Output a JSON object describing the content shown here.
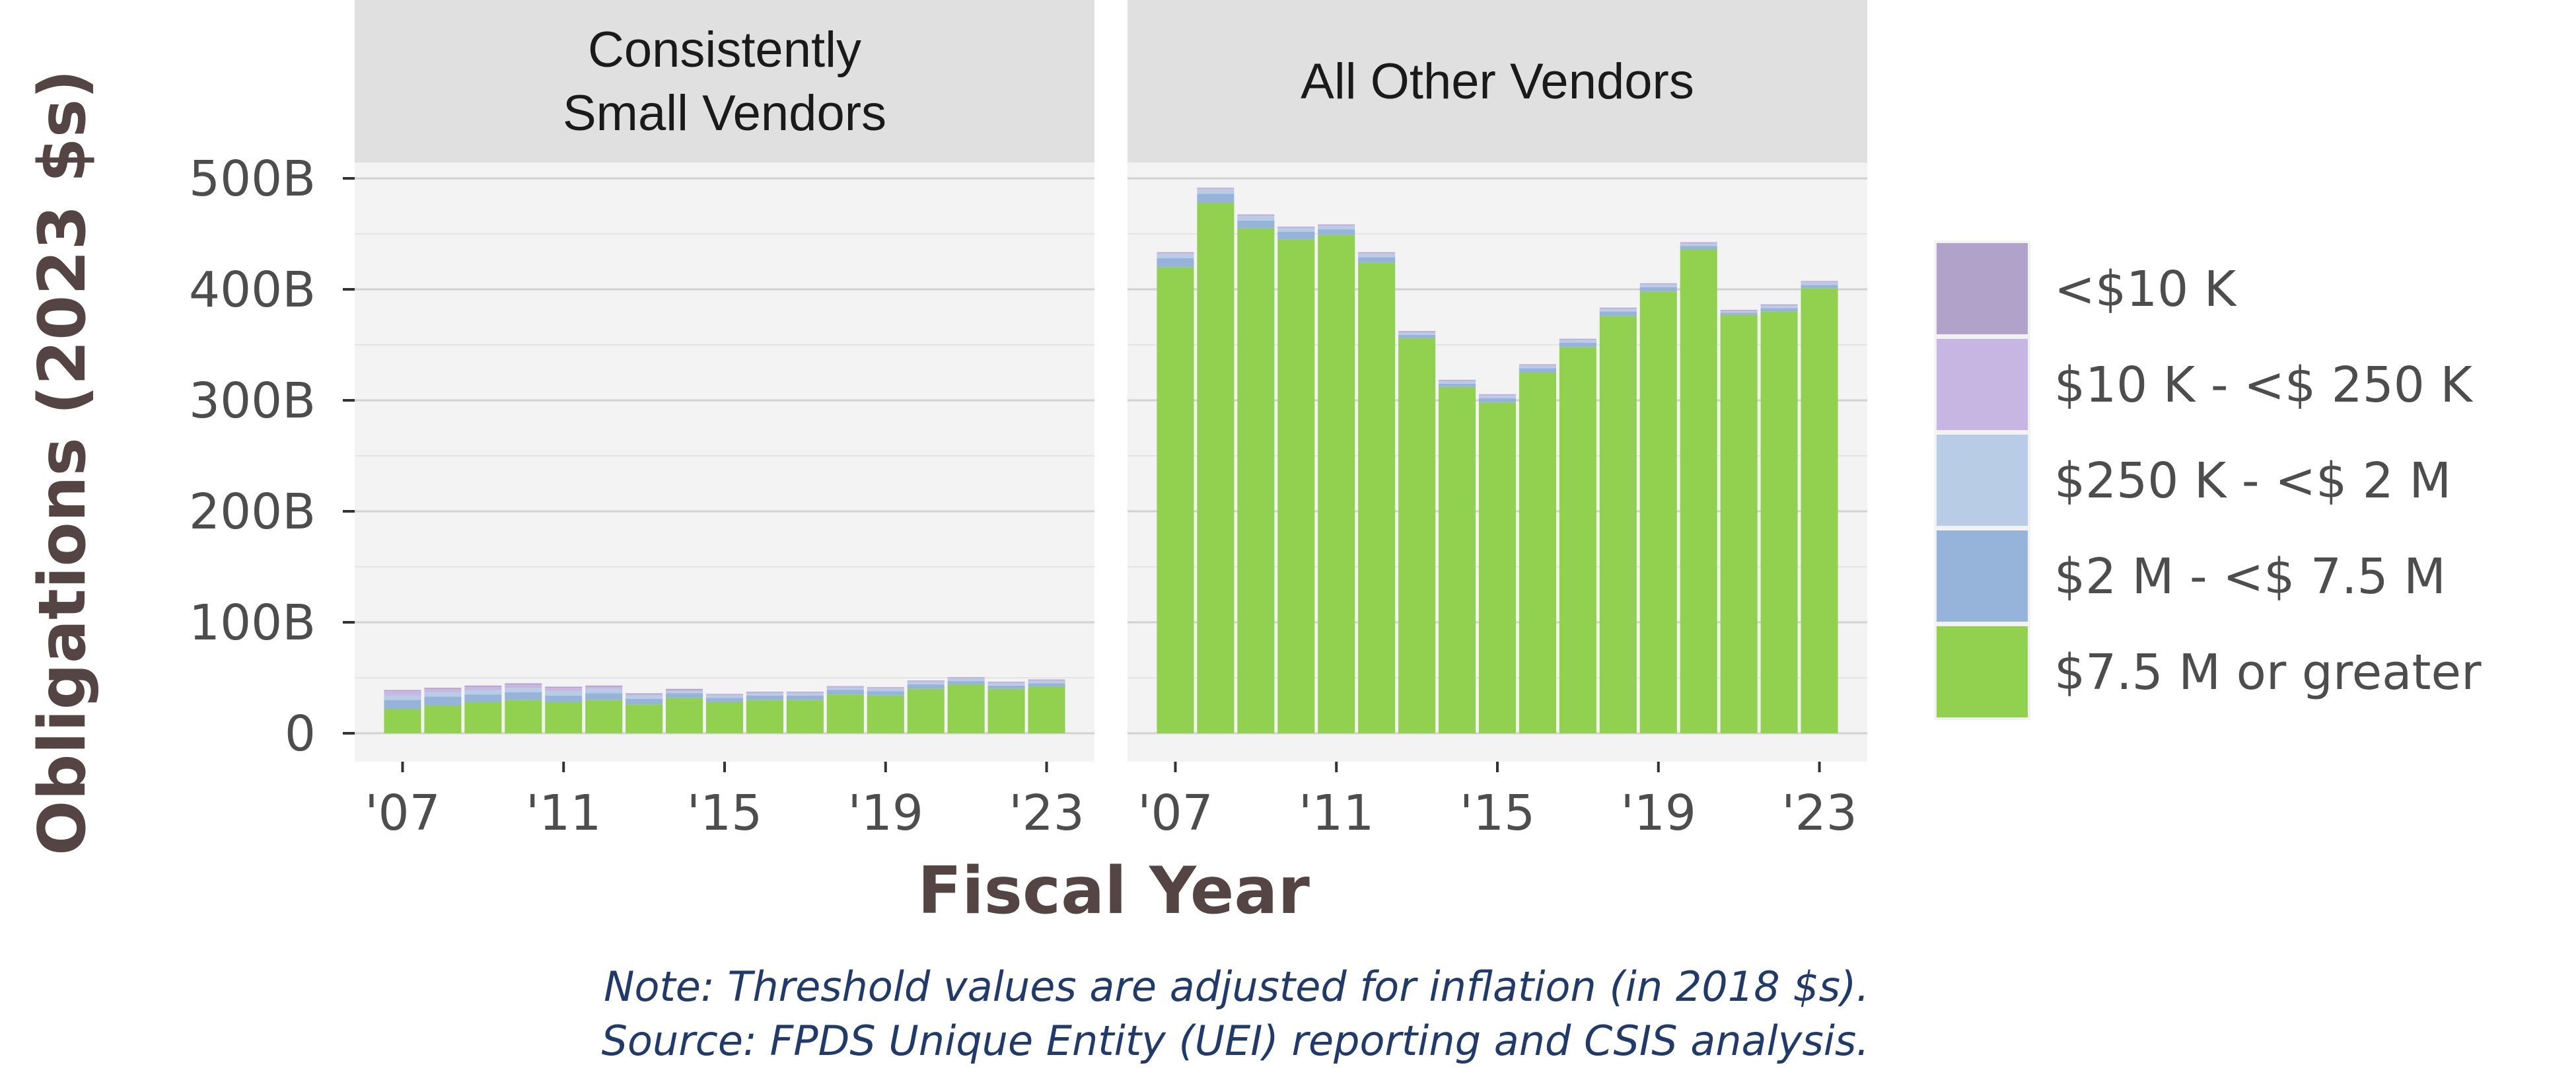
{
  "chart_data": {
    "type": "bar",
    "stacked": true,
    "ylabel": "Obligations (2023 $s)",
    "xlabel": "Fiscal Year",
    "x": [
      2007,
      2008,
      2009,
      2010,
      2011,
      2012,
      2013,
      2014,
      2015,
      2016,
      2017,
      2018,
      2019,
      2020,
      2021,
      2022,
      2023
    ],
    "x_ticks": [
      2007,
      2011,
      2015,
      2019,
      2023
    ],
    "x_tick_labels": [
      "'07",
      "'11",
      "'15",
      "'19",
      "'23"
    ],
    "ylim": [
      0,
      500
    ],
    "y_ticks": [
      0,
      100,
      200,
      300,
      400,
      500
    ],
    "y_tick_labels": [
      "0",
      "100B",
      "200B",
      "300B",
      "400B",
      "500B"
    ],
    "y_unit": "billions",
    "grid": true,
    "legend_position": "right",
    "legend": [
      {
        "key": "lt10k",
        "label": "<$10 K",
        "color": "#b0a2c8"
      },
      {
        "key": "10k_250k",
        "label": "$10 K - <$ 250 K",
        "color": "#c8b6e2"
      },
      {
        "key": "250k_2m",
        "label": "$250 K - <$ 2 M",
        "color": "#b8cce6"
      },
      {
        "key": "2m_7_5m",
        "label": "$2 M - <$ 7.5 M",
        "color": "#96b4da"
      },
      {
        "key": "gte7_5m",
        "label": "$7.5 M or greater",
        "color": "#92d050"
      }
    ],
    "panels": [
      {
        "title_lines": [
          "Consistently",
          "Small Vendors"
        ],
        "series": [
          {
            "key": "gte7_5m",
            "values": [
              22,
              25,
              28,
              30,
              28,
              30,
              26,
              32,
              28,
              30,
              30,
              35,
              34,
              40,
              44,
              40,
              42
            ]
          },
          {
            "key": "2m_7_5m",
            "values": [
              8,
              8,
              7,
              7,
              6,
              6,
              5,
              4,
              4,
              4,
              4,
              4,
              4,
              4,
              3,
              3,
              3
            ]
          },
          {
            "key": "250k_2m",
            "values": [
              4,
              4,
              4,
              4,
              4,
              4,
              3,
              2,
              2,
              2,
              2,
              2,
              2,
              2,
              2,
              2,
              2
            ]
          },
          {
            "key": "10k_250k",
            "values": [
              4,
              3,
              3,
              3,
              3,
              2,
              1,
              1,
              1,
              1,
              1,
              1,
              1,
              1,
              1,
              1,
              1
            ]
          },
          {
            "key": "lt10k",
            "values": [
              1,
              1,
              1,
              1,
              1,
              1,
              1,
              1,
              0.5,
              0.5,
              0.5,
              0.5,
              0.5,
              0.5,
              0.5,
              0.5,
              0.5
            ]
          }
        ]
      },
      {
        "title_lines": [
          "All Other Vendors"
        ],
        "series": [
          {
            "key": "gte7_5m",
            "values": [
              420,
              478,
              455,
              445,
              449,
              424,
              356,
              312,
              298,
              325,
              348,
              376,
              398,
              436,
              377,
              380,
              401
            ]
          },
          {
            "key": "2m_7_5m",
            "values": [
              8,
              8,
              7,
              7,
              5,
              5,
              3,
              3,
              4,
              4,
              4,
              4,
              4,
              3,
              2,
              3,
              3
            ]
          },
          {
            "key": "250k_2m",
            "values": [
              4,
              4,
              4,
              3,
              3,
              3,
              2,
              2,
              2,
              2,
              2,
              2,
              2,
              2,
              1,
              2,
              2
            ]
          },
          {
            "key": "10k_250k",
            "values": [
              1,
              1,
              1,
              1,
              1,
              1,
              1,
              1,
              1,
              1,
              1,
              1,
              1,
              1,
              1,
              1,
              1
            ]
          },
          {
            "key": "lt10k",
            "values": [
              0.5,
              0.5,
              0.5,
              0.5,
              0.5,
              0.5,
              0.5,
              0.5,
              0.5,
              0.5,
              0.5,
              0.5,
              0.5,
              0.5,
              0.5,
              0.5,
              0.5
            ]
          }
        ]
      }
    ],
    "notes": [
      "Note: Threshold values are adjusted for inflation (in 2018 $s).",
      "Source: FPDS Unique Entity (UEI) reporting and CSIS analysis."
    ]
  }
}
